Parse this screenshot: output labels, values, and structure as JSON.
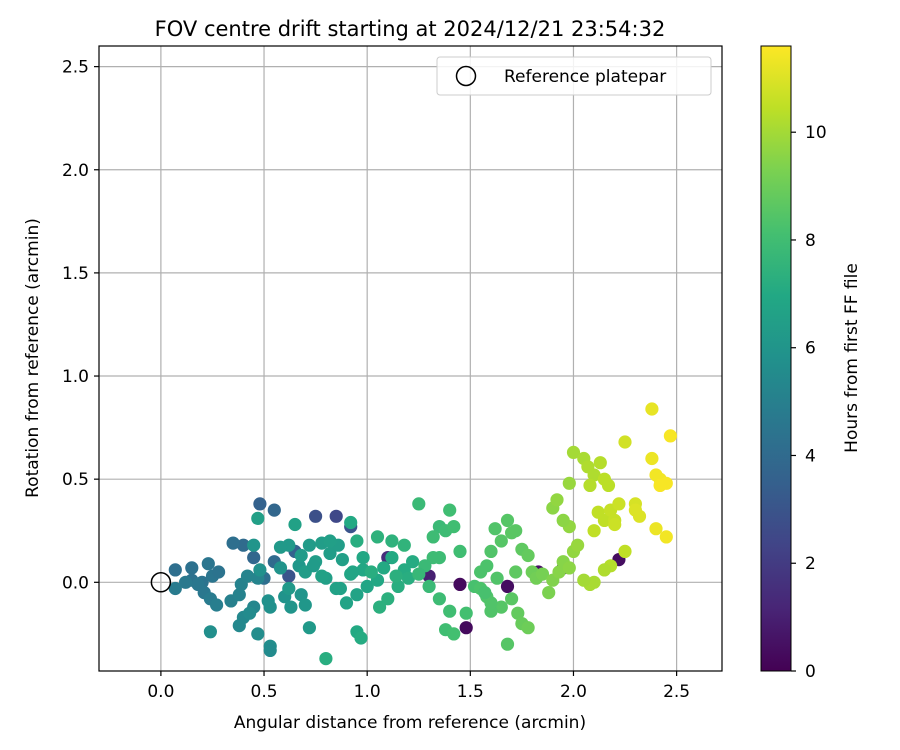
{
  "chart_data": {
    "type": "scatter",
    "title": "FOV centre drift starting at 2024/12/21 23:54:32",
    "xlabel": "Angular distance from reference (arcmin)",
    "ylabel": "Rotation from reference (arcmin)",
    "xlim": [
      -0.3,
      2.72
    ],
    "ylim": [
      -0.43,
      2.6
    ],
    "xticks": [
      0.0,
      0.5,
      1.0,
      1.5,
      2.0,
      2.5
    ],
    "xtick_labels": [
      "0.0",
      "0.5",
      "1.0",
      "1.5",
      "2.0",
      "2.5"
    ],
    "yticks": [
      0.0,
      0.5,
      1.0,
      1.5,
      2.0,
      2.5
    ],
    "ytick_labels": [
      "0.0",
      "0.5",
      "1.0",
      "1.5",
      "2.0",
      "2.5"
    ],
    "grid": true,
    "legend": {
      "position": "top-right",
      "entries": [
        "Reference platepar"
      ]
    },
    "reference_point": {
      "x": 0.0,
      "y": 0.0,
      "style": "hollow-circle"
    },
    "colorbar": {
      "label": "Hours from first FF file",
      "range": [
        0,
        11.6
      ],
      "ticks": [
        0,
        2,
        4,
        6,
        8,
        10
      ],
      "tick_labels": [
        "0",
        "2",
        "4",
        "6",
        "8",
        "10"
      ],
      "colormap": "viridis"
    },
    "points": [
      [
        1.45,
        -0.01,
        0.3
      ],
      [
        1.48,
        -0.22,
        0.3
      ],
      [
        1.68,
        -0.02,
        0.4
      ],
      [
        1.83,
        0.05,
        0.5
      ],
      [
        2.22,
        0.11,
        0.4
      ],
      [
        1.95,
        0.07,
        0.6
      ],
      [
        1.3,
        0.03,
        1.0
      ],
      [
        1.1,
        0.12,
        1.5
      ],
      [
        0.85,
        0.32,
        2.5
      ],
      [
        0.75,
        0.32,
        2.8
      ],
      [
        0.92,
        0.27,
        3.0
      ],
      [
        0.62,
        0.03,
        3.0
      ],
      [
        0.48,
        0.38,
        3.6
      ],
      [
        0.55,
        0.35,
        3.8
      ],
      [
        0.65,
        0.15,
        3.6
      ],
      [
        0.45,
        0.12,
        3.8
      ],
      [
        0.4,
        0.18,
        4.0
      ],
      [
        0.35,
        0.19,
        4.2
      ],
      [
        0.55,
        0.1,
        4.0
      ],
      [
        0.5,
        0.02,
        4.2
      ],
      [
        0.07,
        0.06,
        4.2
      ],
      [
        0.15,
        0.07,
        4.3
      ],
      [
        0.15,
        0.01,
        4.3
      ],
      [
        0.2,
        0.0,
        4.4
      ],
      [
        0.25,
        0.03,
        4.5
      ],
      [
        0.28,
        0.05,
        4.4
      ],
      [
        0.23,
        0.09,
        4.5
      ],
      [
        0.18,
        -0.01,
        4.6
      ],
      [
        0.21,
        -0.05,
        4.6
      ],
      [
        0.12,
        0.0,
        4.7
      ],
      [
        0.07,
        -0.03,
        4.8
      ],
      [
        0.24,
        -0.08,
        4.8
      ],
      [
        0.27,
        -0.11,
        4.9
      ],
      [
        0.34,
        -0.09,
        5.0
      ],
      [
        0.38,
        -0.06,
        5.1
      ],
      [
        0.39,
        -0.01,
        5.1
      ],
      [
        0.42,
        0.03,
        5.2
      ],
      [
        0.47,
        0.02,
        5.2
      ],
      [
        0.45,
        -0.12,
        5.3
      ],
      [
        0.4,
        -0.17,
        5.4
      ],
      [
        0.38,
        -0.21,
        5.4
      ],
      [
        0.43,
        -0.15,
        5.5
      ],
      [
        0.47,
        -0.25,
        5.6
      ],
      [
        0.53,
        -0.31,
        5.6
      ],
      [
        0.53,
        -0.33,
        5.5
      ],
      [
        0.24,
        -0.24,
        5.7
      ],
      [
        0.52,
        -0.09,
        5.8
      ],
      [
        0.53,
        -0.12,
        5.8
      ],
      [
        0.6,
        -0.07,
        5.9
      ],
      [
        0.63,
        -0.12,
        6.0
      ],
      [
        0.68,
        -0.06,
        6.0
      ],
      [
        0.7,
        -0.11,
        6.1
      ],
      [
        0.72,
        -0.22,
        6.2
      ],
      [
        0.67,
        0.08,
        6.1
      ],
      [
        0.62,
        0.18,
        6.2
      ],
      [
        0.58,
        0.17,
        6.2
      ],
      [
        0.68,
        0.13,
        6.3
      ],
      [
        0.72,
        0.18,
        6.3
      ],
      [
        0.78,
        0.19,
        6.4
      ],
      [
        0.75,
        0.1,
        6.4
      ],
      [
        0.82,
        0.14,
        6.4
      ],
      [
        0.88,
        0.11,
        6.5
      ],
      [
        0.8,
        0.02,
        6.5
      ],
      [
        0.85,
        -0.03,
        6.6
      ],
      [
        0.9,
        -0.1,
        6.7
      ],
      [
        0.95,
        -0.06,
        6.7
      ],
      [
        1.0,
        -0.02,
        6.8
      ],
      [
        0.92,
        0.04,
        6.8
      ],
      [
        0.98,
        0.06,
        6.9
      ],
      [
        1.05,
        0.01,
        6.9
      ],
      [
        1.08,
        0.07,
        7.0
      ],
      [
        1.12,
        0.12,
        7.0
      ],
      [
        1.18,
        0.06,
        7.1
      ],
      [
        1.22,
        0.1,
        7.1
      ],
      [
        1.2,
        0.02,
        7.2
      ],
      [
        1.15,
        -0.02,
        7.2
      ],
      [
        1.1,
        -0.08,
        7.3
      ],
      [
        1.06,
        -0.12,
        7.3
      ],
      [
        0.95,
        -0.24,
        7.0
      ],
      [
        0.97,
        -0.27,
        7.1
      ],
      [
        0.8,
        -0.37,
        7.2
      ],
      [
        0.47,
        0.31,
        6.5
      ],
      [
        0.45,
        0.18,
        6.0
      ],
      [
        0.48,
        0.06,
        5.8
      ],
      [
        0.65,
        0.28,
        6.6
      ],
      [
        0.7,
        0.05,
        6.4
      ],
      [
        0.78,
        0.03,
        6.6
      ],
      [
        0.62,
        -0.03,
        6.2
      ],
      [
        0.92,
        0.29,
        7.0
      ],
      [
        0.95,
        0.2,
        7.2
      ],
      [
        1.05,
        0.22,
        7.4
      ],
      [
        1.12,
        0.2,
        7.4
      ],
      [
        1.18,
        0.18,
        7.5
      ],
      [
        1.25,
        0.38,
        7.8
      ],
      [
        1.35,
        0.27,
        7.8
      ],
      [
        1.38,
        0.25,
        7.9
      ],
      [
        1.4,
        0.35,
        8.0
      ],
      [
        1.42,
        0.27,
        8.0
      ],
      [
        1.32,
        0.12,
        7.9
      ],
      [
        1.28,
        0.08,
        7.8
      ],
      [
        1.25,
        0.04,
        7.7
      ],
      [
        1.3,
        -0.02,
        7.8
      ],
      [
        1.35,
        -0.08,
        7.9
      ],
      [
        1.4,
        -0.14,
        8.0
      ],
      [
        1.38,
        -0.23,
        8.0
      ],
      [
        1.42,
        -0.25,
        8.1
      ],
      [
        1.48,
        -0.15,
        8.1
      ],
      [
        1.52,
        -0.02,
        8.2
      ],
      [
        1.55,
        0.05,
        8.3
      ],
      [
        1.58,
        0.08,
        8.3
      ],
      [
        1.6,
        0.15,
        8.4
      ],
      [
        1.62,
        0.26,
        8.4
      ],
      [
        1.65,
        0.2,
        8.5
      ],
      [
        1.68,
        0.3,
        8.5
      ],
      [
        1.7,
        0.24,
        8.6
      ],
      [
        1.72,
        0.25,
        8.6
      ],
      [
        1.75,
        0.16,
        8.7
      ],
      [
        1.78,
        0.13,
        8.8
      ],
      [
        1.72,
        0.05,
        8.7
      ],
      [
        1.7,
        -0.08,
        8.6
      ],
      [
        1.65,
        -0.12,
        8.5
      ],
      [
        1.6,
        -0.14,
        8.4
      ],
      [
        1.58,
        -0.07,
        8.4
      ],
      [
        1.55,
        -0.03,
        8.3
      ],
      [
        1.6,
        -0.1,
        8.4
      ],
      [
        1.73,
        -0.15,
        8.8
      ],
      [
        1.75,
        -0.2,
        8.9
      ],
      [
        1.78,
        -0.22,
        9.0
      ],
      [
        1.68,
        -0.3,
        8.5
      ],
      [
        1.8,
        0.05,
        9.0
      ],
      [
        1.82,
        0.02,
        9.1
      ],
      [
        1.85,
        0.04,
        9.2
      ],
      [
        1.88,
        -0.05,
        9.3
      ],
      [
        1.9,
        0.01,
        9.4
      ],
      [
        1.93,
        0.05,
        9.5
      ],
      [
        1.95,
        0.1,
        9.5
      ],
      [
        1.98,
        0.07,
        9.6
      ],
      [
        2.0,
        0.15,
        9.7
      ],
      [
        2.02,
        0.18,
        9.8
      ],
      [
        1.98,
        0.27,
        9.7
      ],
      [
        1.95,
        0.3,
        9.6
      ],
      [
        1.9,
        0.36,
        9.6
      ],
      [
        1.92,
        0.4,
        9.7
      ],
      [
        1.98,
        0.48,
        9.8
      ],
      [
        2.0,
        0.63,
        10.0
      ],
      [
        2.05,
        0.6,
        10.1
      ],
      [
        2.07,
        0.56,
        10.2
      ],
      [
        2.1,
        0.52,
        10.2
      ],
      [
        2.08,
        0.47,
        10.3
      ],
      [
        2.13,
        0.58,
        10.3
      ],
      [
        2.15,
        0.5,
        10.4
      ],
      [
        2.17,
        0.47,
        10.4
      ],
      [
        2.12,
        0.34,
        10.5
      ],
      [
        2.15,
        0.3,
        10.5
      ],
      [
        2.18,
        0.35,
        10.6
      ],
      [
        2.2,
        0.3,
        10.6
      ],
      [
        2.22,
        0.38,
        10.7
      ],
      [
        2.25,
        0.68,
        10.8
      ],
      [
        2.18,
        0.08,
        10.3
      ],
      [
        2.15,
        0.06,
        10.2
      ],
      [
        2.1,
        0.0,
        10.1
      ],
      [
        2.08,
        -0.01,
        10.1
      ],
      [
        2.05,
        0.01,
        10.0
      ],
      [
        2.25,
        0.15,
        10.5
      ],
      [
        2.3,
        0.38,
        10.9
      ],
      [
        2.32,
        0.32,
        11.0
      ],
      [
        2.38,
        0.84,
        11.2
      ],
      [
        2.38,
        0.6,
        11.3
      ],
      [
        2.4,
        0.52,
        11.4
      ],
      [
        2.42,
        0.5,
        11.4
      ],
      [
        2.45,
        0.48,
        11.5
      ],
      [
        2.47,
        0.71,
        11.5
      ],
      [
        2.4,
        0.26,
        11.3
      ],
      [
        2.45,
        0.22,
        11.4
      ],
      [
        2.42,
        0.47,
        11.5
      ],
      [
        2.3,
        0.35,
        11.0
      ],
      [
        2.2,
        0.28,
        10.7
      ],
      [
        2.1,
        0.25,
        10.5
      ],
      [
        1.35,
        0.12,
        7.9
      ],
      [
        1.45,
        0.15,
        8.0
      ],
      [
        0.93,
        0.05,
        6.8
      ],
      [
        0.87,
        -0.03,
        6.6
      ],
      [
        0.86,
        0.18,
        6.4
      ],
      [
        1.02,
        0.05,
        7.2
      ],
      [
        1.14,
        0.03,
        7.3
      ],
      [
        0.98,
        0.12,
        6.9
      ],
      [
        1.32,
        0.22,
        7.9
      ],
      [
        1.57,
        -0.05,
        8.2
      ],
      [
        1.63,
        0.02,
        8.4
      ],
      [
        0.58,
        0.07,
        5.9
      ],
      [
        0.74,
        0.08,
        6.3
      ],
      [
        0.82,
        0.2,
        6.5
      ]
    ]
  }
}
